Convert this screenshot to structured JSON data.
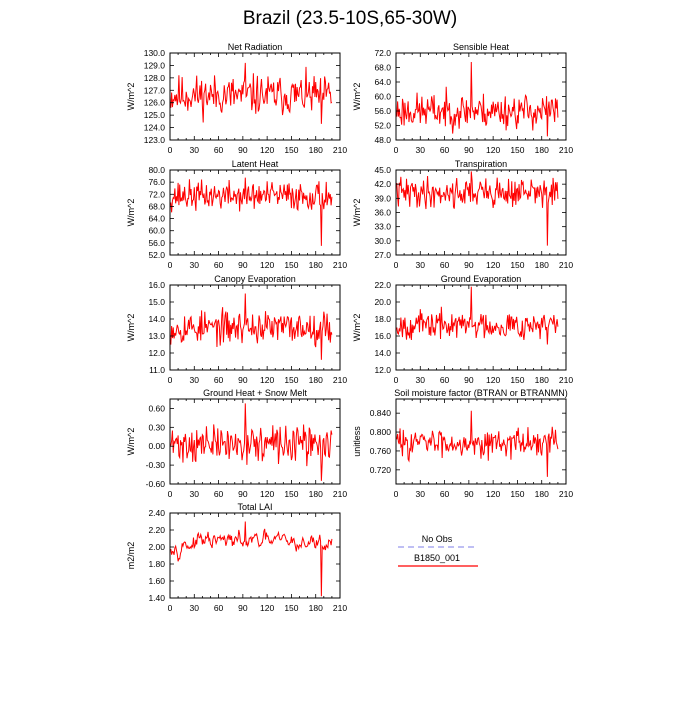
{
  "title": "Brazil (23.5-10S,65-30W)",
  "legend": {
    "entries": [
      {
        "label": "No Obs",
        "color": "#9999ee",
        "dash": true
      },
      {
        "label": "B1850_001",
        "color": "#ff0000",
        "dash": false
      }
    ]
  },
  "chart_data": [
    {
      "type": "line",
      "id": "net-radiation",
      "title": "Net Radiation",
      "ylabel": "W/m^2",
      "xlim": [
        0,
        210
      ],
      "xticks": [
        0,
        30,
        60,
        90,
        120,
        150,
        180,
        210
      ],
      "ylim": [
        123.0,
        130.0
      ],
      "yticks": [
        "123.0",
        "124.0",
        "125.0",
        "126.0",
        "127.0",
        "128.0",
        "129.0",
        "130.0"
      ],
      "series_name": "B1850_001",
      "color": "#ff0000",
      "n": 200,
      "mean": 126.6,
      "amp": 1.0,
      "seed": 11,
      "min": 124.3,
      "max": 129.2
    },
    {
      "type": "line",
      "id": "sensible-heat",
      "title": "Sensible Heat",
      "ylabel": "W/m^2",
      "xlim": [
        0,
        210
      ],
      "xticks": [
        0,
        30,
        60,
        90,
        120,
        150,
        180,
        210
      ],
      "ylim": [
        48.0,
        72.0
      ],
      "yticks": [
        "48.0",
        "52.0",
        "56.0",
        "60.0",
        "64.0",
        "68.0",
        "72.0"
      ],
      "series_name": "B1850_001",
      "color": "#ff0000",
      "n": 200,
      "mean": 56.0,
      "amp": 3.0,
      "seed": 23,
      "min": 49.0,
      "max": 69.5
    },
    {
      "type": "line",
      "id": "latent-heat",
      "title": "Latent Heat",
      "ylabel": "W/m^2",
      "xlim": [
        0,
        210
      ],
      "xticks": [
        0,
        30,
        60,
        90,
        120,
        150,
        180,
        210
      ],
      "ylim": [
        52.0,
        80.0
      ],
      "yticks": [
        "52.0",
        "56.0",
        "60.0",
        "64.0",
        "68.0",
        "72.0",
        "76.0",
        "80.0"
      ],
      "series_name": "B1850_001",
      "color": "#ff0000",
      "n": 200,
      "mean": 71.5,
      "amp": 3.0,
      "seed": 37,
      "min": 55.0,
      "max": 77.5
    },
    {
      "type": "line",
      "id": "transpiration",
      "title": "Transpiration",
      "ylabel": "W/m^2",
      "xlim": [
        0,
        210
      ],
      "xticks": [
        0,
        30,
        60,
        90,
        120,
        150,
        180,
        210
      ],
      "ylim": [
        27.0,
        45.0
      ],
      "yticks": [
        "27.0",
        "30.0",
        "33.0",
        "36.0",
        "39.0",
        "42.0",
        "45.0"
      ],
      "series_name": "B1850_001",
      "color": "#ff0000",
      "n": 200,
      "mean": 40.2,
      "amp": 2.0,
      "seed": 41,
      "min": 29.0,
      "max": 44.7
    },
    {
      "type": "line",
      "id": "canopy-evaporation",
      "title": "Canopy Evaporation",
      "ylabel": "W/m^2",
      "xlim": [
        0,
        210
      ],
      "xticks": [
        0,
        30,
        60,
        90,
        120,
        150,
        180,
        210
      ],
      "ylim": [
        11.0,
        16.0
      ],
      "yticks": [
        "11.0",
        "12.0",
        "13.0",
        "14.0",
        "15.0",
        "16.0"
      ],
      "series_name": "B1850_001",
      "color": "#ff0000",
      "n": 200,
      "mean": 13.5,
      "amp": 0.6,
      "seed": 53,
      "min": 11.6,
      "max": 15.5
    },
    {
      "type": "line",
      "id": "ground-evaporation",
      "title": "Ground Evaporation",
      "ylabel": "W/m^2",
      "xlim": [
        0,
        210
      ],
      "xticks": [
        0,
        30,
        60,
        90,
        120,
        150,
        180,
        210
      ],
      "ylim": [
        12.0,
        22.0
      ],
      "yticks": [
        "12.0",
        "14.0",
        "16.0",
        "18.0",
        "20.0",
        "22.0"
      ],
      "series_name": "B1850_001",
      "color": "#ff0000",
      "n": 200,
      "mean": 17.3,
      "amp": 1.0,
      "seed": 67,
      "min": 15.0,
      "max": 21.8
    },
    {
      "type": "line",
      "id": "ground-heat-snow-melt",
      "title": "Ground Heat + Snow Melt",
      "ylabel": "W/m^2",
      "xlim": [
        0,
        210
      ],
      "xticks": [
        0,
        30,
        60,
        90,
        120,
        150,
        180,
        210
      ],
      "ylim": [
        -0.6,
        0.75
      ],
      "yticks": [
        "-0.60",
        "-0.30",
        "0.00",
        "0.30",
        "0.60"
      ],
      "series_name": "B1850_001",
      "color": "#ff0000",
      "n": 200,
      "mean": 0.03,
      "amp": 0.18,
      "seed": 71,
      "min": -0.55,
      "max": 0.68
    },
    {
      "type": "line",
      "id": "soil-moisture-factor",
      "title": "Soil moisture factor (BTRAN or BTRANMN)",
      "ylabel": "unitless",
      "xlim": [
        0,
        210
      ],
      "xticks": [
        0,
        30,
        60,
        90,
        120,
        150,
        180,
        210
      ],
      "ylim": [
        0.69,
        0.87
      ],
      "yticks": [
        "0.720",
        "0.760",
        "0.800",
        "0.840"
      ],
      "series_name": "B1850_001",
      "color": "#ff0000",
      "n": 200,
      "mean": 0.778,
      "amp": 0.018,
      "seed": 83,
      "min": 0.705,
      "max": 0.845
    },
    {
      "type": "line",
      "id": "total-lai",
      "title": "Total LAI",
      "ylabel": "m2/m2",
      "xlim": [
        0,
        210
      ],
      "xticks": [
        0,
        30,
        60,
        90,
        120,
        150,
        180,
        210
      ],
      "ylim": [
        1.4,
        2.4
      ],
      "yticks": [
        "1.40",
        "1.60",
        "1.80",
        "2.00",
        "2.20",
        "2.40"
      ],
      "series_name": "B1850_001",
      "color": "#ff0000",
      "n": 200,
      "mean": 2.05,
      "amp": 0.1,
      "seed": 97,
      "min": 1.42,
      "max": 2.3,
      "smooth": true
    }
  ]
}
